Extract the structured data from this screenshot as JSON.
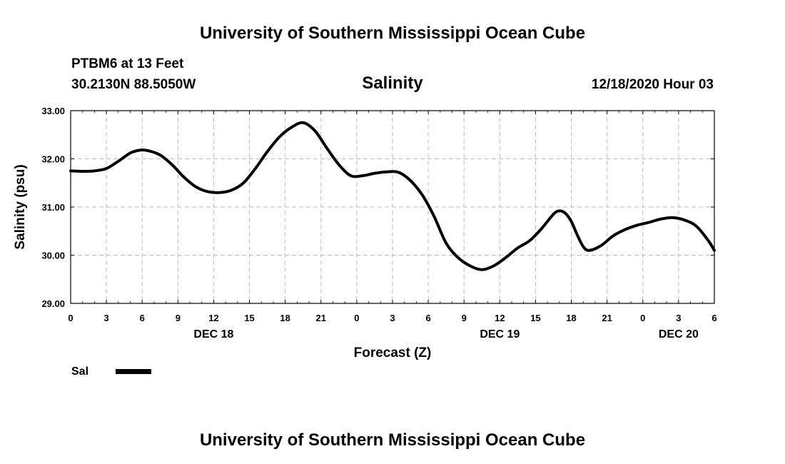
{
  "header": {
    "title_top": "University of Southern Mississippi Ocean Cube",
    "station": "PTBM6 at 13 Feet",
    "coords": "30.2130N 88.5050W",
    "variable": "Salinity",
    "datetime": "12/18/2020 Hour 03",
    "title_bottom": "University of Southern Mississippi Ocean Cube"
  },
  "legend": {
    "label": "Sal",
    "color": "#000000"
  },
  "chart_data": {
    "type": "line",
    "title": "Salinity",
    "xlabel": "Forecast (Z)",
    "ylabel": "Salinity (psu)",
    "xlim": [
      0,
      54
    ],
    "ylim": [
      29.0,
      33.0
    ],
    "grid": true,
    "legend_position": "bottom-left",
    "x_ticks": [
      0,
      3,
      6,
      9,
      12,
      15,
      18,
      21,
      24,
      27,
      30,
      33,
      36,
      39,
      42,
      45,
      48,
      51,
      54
    ],
    "x_tick_labels": [
      "0",
      "3",
      "6",
      "9",
      "12",
      "15",
      "18",
      "21",
      "0",
      "3",
      "6",
      "9",
      "12",
      "15",
      "18",
      "21",
      "0",
      "3",
      "6"
    ],
    "y_ticks": [
      29.0,
      30.0,
      31.0,
      32.0,
      33.0
    ],
    "y_tick_labels": [
      "29.00",
      "30.00",
      "31.00",
      "32.00",
      "33.00"
    ],
    "date_labels": [
      {
        "x": 12,
        "label": "DEC 18"
      },
      {
        "x": 36,
        "label": "DEC 19"
      },
      {
        "x": 51,
        "label": "DEC 20"
      }
    ],
    "series": [
      {
        "name": "Sal",
        "color": "#000000",
        "x": [
          0,
          1,
          2,
          3,
          4,
          5,
          5.8,
          6.5,
          7.5,
          8.5,
          9.5,
          10.5,
          11.5,
          12.5,
          13.5,
          14.5,
          15.5,
          16.5,
          17.5,
          18.5,
          19.5,
          20.5,
          21.5,
          22.5,
          23.5,
          24.5,
          25.5,
          26.5,
          27.5,
          28.5,
          29.5,
          30.5,
          31.5,
          32.5,
          33.5,
          34.5,
          35.5,
          36.5,
          37.5,
          38.5,
          39.5,
          40.5,
          41.0,
          41.5,
          42.0,
          42.5,
          43.0,
          43.5,
          44.5,
          45.5,
          46.5,
          47.5,
          48.5,
          49.5,
          50.5,
          51.5,
          52.5,
          53.5,
          54
        ],
        "values": [
          31.75,
          31.74,
          31.75,
          31.8,
          31.95,
          32.12,
          32.18,
          32.17,
          32.08,
          31.88,
          31.62,
          31.42,
          31.32,
          31.3,
          31.35,
          31.5,
          31.8,
          32.15,
          32.45,
          32.65,
          32.75,
          32.58,
          32.22,
          31.88,
          31.65,
          31.65,
          31.7,
          31.73,
          31.72,
          31.55,
          31.25,
          30.8,
          30.25,
          29.95,
          29.78,
          29.7,
          29.78,
          29.95,
          30.15,
          30.3,
          30.55,
          30.85,
          30.92,
          30.87,
          30.7,
          30.42,
          30.18,
          30.1,
          30.2,
          30.4,
          30.53,
          30.62,
          30.68,
          30.75,
          30.78,
          30.73,
          30.6,
          30.3,
          30.1
        ]
      }
    ]
  }
}
